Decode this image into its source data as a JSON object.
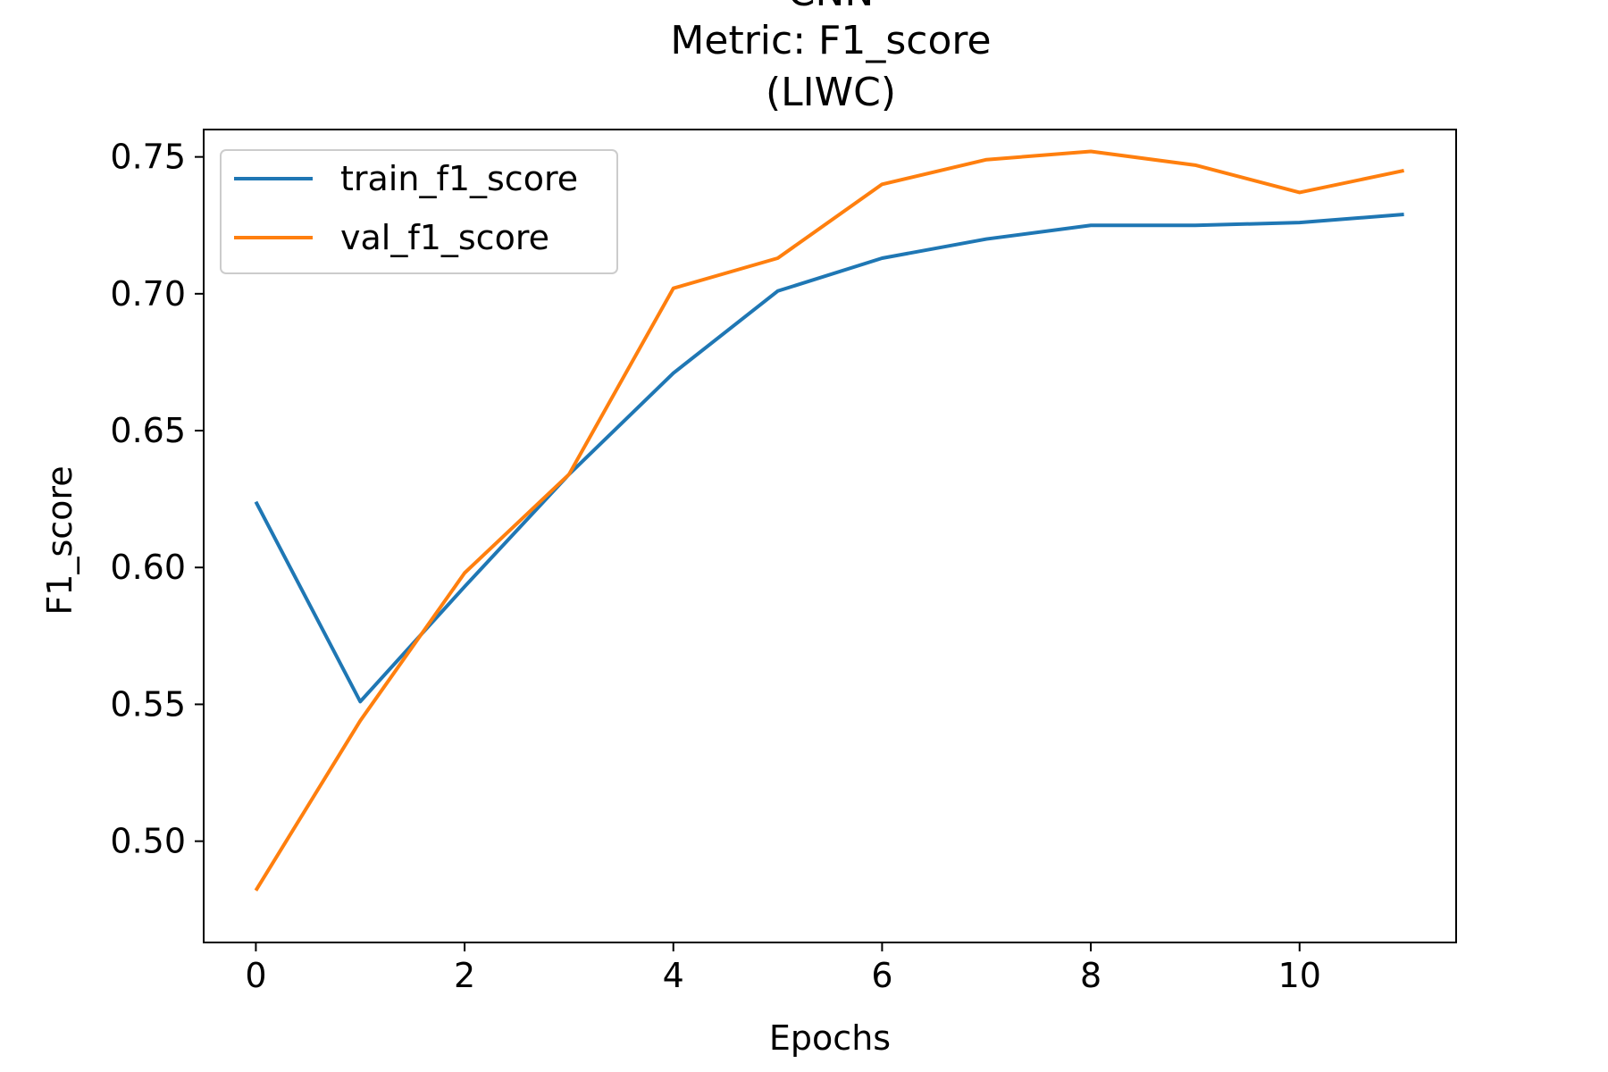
{
  "chart_data": {
    "type": "line",
    "title_lines": [
      "CNN",
      "Metric: F1_score",
      "(LIWC)"
    ],
    "xlabel": "Epochs",
    "ylabel": "F1_score",
    "x": [
      0,
      1,
      2,
      3,
      4,
      5,
      6,
      7,
      8,
      9,
      10,
      11
    ],
    "xlim": [
      -0.5,
      11.5
    ],
    "ylim": [
      0.463,
      0.76
    ],
    "xticks": [
      0,
      2,
      4,
      6,
      8,
      10
    ],
    "xtick_labels": [
      "0",
      "2",
      "4",
      "6",
      "8",
      "10"
    ],
    "yticks": [
      0.5,
      0.55,
      0.6,
      0.65,
      0.7,
      0.75
    ],
    "ytick_labels": [
      "0.50",
      "0.55",
      "0.60",
      "0.65",
      "0.70",
      "0.75"
    ],
    "grid": false,
    "legend_position": "upper-left",
    "series": [
      {
        "name": "train_f1_score",
        "color": "#1f77b4",
        "values": [
          0.624,
          0.551,
          0.593,
          0.634,
          0.671,
          0.701,
          0.713,
          0.72,
          0.725,
          0.725,
          0.726,
          0.729
        ]
      },
      {
        "name": "val_f1_score",
        "color": "#ff7f0e",
        "values": [
          0.482,
          0.544,
          0.598,
          0.634,
          0.702,
          0.713,
          0.74,
          0.749,
          0.752,
          0.747,
          0.737,
          0.745
        ]
      }
    ]
  }
}
